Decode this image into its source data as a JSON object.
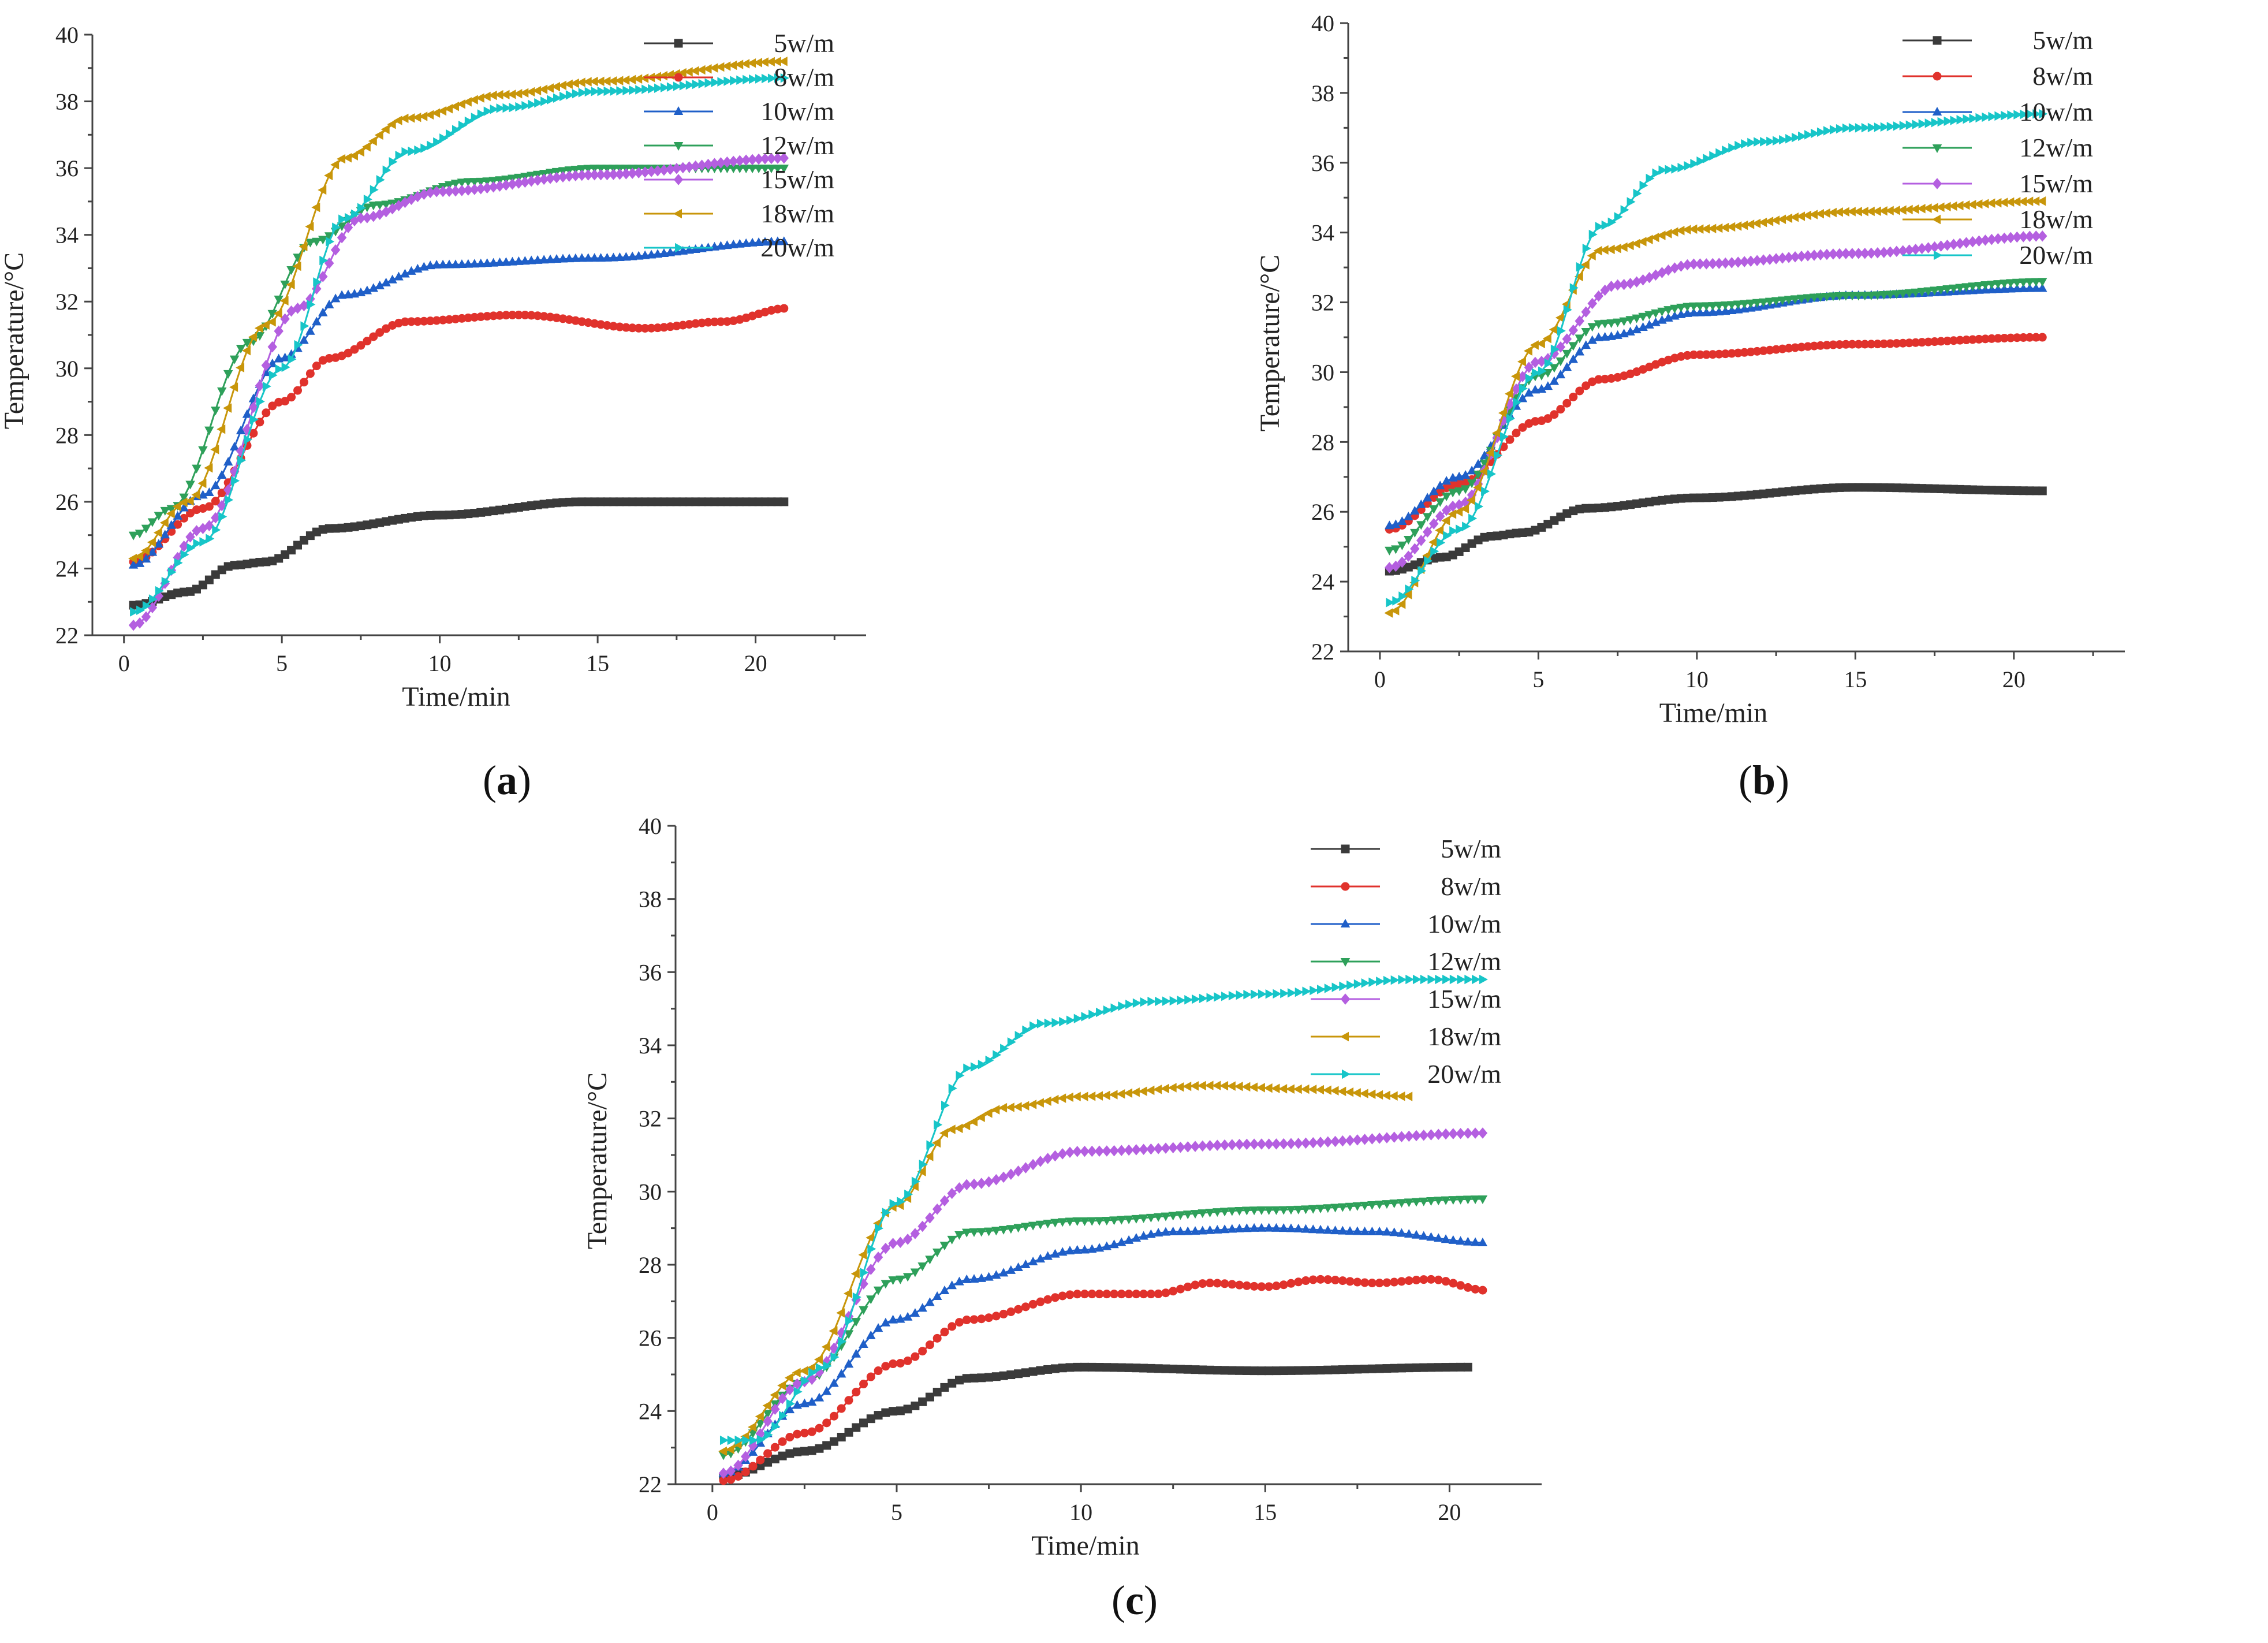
{
  "figure": {
    "legend_labels": [
      "5w/m",
      "8w/m",
      "10w/m",
      "12w/m",
      "15w/m",
      "18w/m",
      "20w/m"
    ],
    "series_colors": [
      "#3a3a3a",
      "#e0322c",
      "#1f5fc8",
      "#2ea05a",
      "#b45fe0",
      "#c8960a",
      "#17c5c8"
    ],
    "markers": [
      "square",
      "circle",
      "triangle-up",
      "triangle-down",
      "diamond",
      "triangle-left",
      "triangle-right"
    ]
  },
  "chart_data": [
    {
      "id": "a",
      "type": "line",
      "panel_label": "a",
      "xlabel": "Time/min",
      "ylabel": "Temperature/°C",
      "xlim": [
        -1,
        23.5
      ],
      "ylim": [
        22,
        40
      ],
      "xticks": [
        0,
        5,
        10,
        15,
        20
      ],
      "yticks": [
        22,
        24,
        26,
        28,
        30,
        32,
        34,
        36,
        38,
        40
      ],
      "x_range": [
        0.3,
        21
      ],
      "series": [
        {
          "name": "5w/m",
          "knots": [
            [
              0.3,
              22.9
            ],
            [
              2,
              23.3
            ],
            [
              3.5,
              24.1
            ],
            [
              4.5,
              24.2
            ],
            [
              6.5,
              25.2
            ],
            [
              10,
              25.6
            ],
            [
              14.5,
              26.0
            ],
            [
              21,
              26.0
            ]
          ]
        },
        {
          "name": "8w/m",
          "knots": [
            [
              0.3,
              24.2
            ],
            [
              2.5,
              25.8
            ],
            [
              5,
              29.0
            ],
            [
              6.5,
              30.3
            ],
            [
              9,
              31.4
            ],
            [
              12.5,
              31.6
            ],
            [
              16.5,
              31.2
            ],
            [
              19,
              31.4
            ],
            [
              21,
              31.8
            ]
          ]
        },
        {
          "name": "10w/m",
          "knots": [
            [
              0.3,
              24.1
            ],
            [
              2.5,
              26.2
            ],
            [
              5,
              30.3
            ],
            [
              7,
              32.2
            ],
            [
              10,
              33.1
            ],
            [
              15,
              33.3
            ],
            [
              21,
              33.8
            ]
          ]
        },
        {
          "name": "12w/m",
          "knots": [
            [
              0.3,
              25.0
            ],
            [
              1.5,
              25.8
            ],
            [
              4,
              30.8
            ],
            [
              6,
              33.8
            ],
            [
              8,
              34.9
            ],
            [
              11,
              35.6
            ],
            [
              15,
              36.0
            ],
            [
              21,
              36.0
            ]
          ]
        },
        {
          "name": "15w/m",
          "knots": [
            [
              0.3,
              22.3
            ],
            [
              2.5,
              25.2
            ],
            [
              5.5,
              31.8
            ],
            [
              7.5,
              34.5
            ],
            [
              10,
              35.3
            ],
            [
              15,
              35.8
            ],
            [
              21,
              36.3
            ]
          ]
        },
        {
          "name": "18w/m",
          "knots": [
            [
              0.3,
              24.3
            ],
            [
              2,
              26.0
            ],
            [
              4.5,
              31.3
            ],
            [
              7,
              36.3
            ],
            [
              9,
              37.5
            ],
            [
              12,
              38.2
            ],
            [
              15,
              38.6
            ],
            [
              21,
              39.2
            ]
          ]
        },
        {
          "name": "20w/m",
          "knots": [
            [
              0.3,
              22.7
            ],
            [
              2.5,
              24.8
            ],
            [
              5,
              30.0
            ],
            [
              7,
              34.5
            ],
            [
              9,
              36.5
            ],
            [
              12,
              37.8
            ],
            [
              15,
              38.3
            ],
            [
              21,
              38.7
            ]
          ]
        }
      ]
    },
    {
      "id": "b",
      "type": "line",
      "panel_label": "b",
      "xlabel": "Time/min",
      "ylabel": "Temperature/°C",
      "xlim": [
        -1,
        23.5
      ],
      "ylim": [
        22,
        40
      ],
      "xticks": [
        0,
        5,
        10,
        15,
        20
      ],
      "yticks": [
        22,
        24,
        26,
        28,
        30,
        32,
        34,
        36,
        38,
        40
      ],
      "x_range": [
        0.3,
        21
      ],
      "series": [
        {
          "name": "5w/m",
          "knots": [
            [
              0.3,
              24.3
            ],
            [
              2,
              24.7
            ],
            [
              3.5,
              25.3
            ],
            [
              4.5,
              25.4
            ],
            [
              6.5,
              26.1
            ],
            [
              10,
              26.4
            ],
            [
              15,
              26.7
            ],
            [
              21,
              26.6
            ]
          ]
        },
        {
          "name": "8w/m",
          "knots": [
            [
              0.3,
              25.5
            ],
            [
              2.5,
              26.8
            ],
            [
              5,
              28.6
            ],
            [
              7,
              29.8
            ],
            [
              10,
              30.5
            ],
            [
              15,
              30.8
            ],
            [
              21,
              31.0
            ]
          ]
        },
        {
          "name": "10w/m",
          "knots": [
            [
              0.3,
              25.6
            ],
            [
              2.5,
              27.0
            ],
            [
              5,
              29.5
            ],
            [
              7,
              31.0
            ],
            [
              10,
              31.7
            ],
            [
              15,
              32.2
            ],
            [
              21,
              32.4
            ]
          ]
        },
        {
          "name": "12w/m",
          "knots": [
            [
              0.3,
              24.9
            ],
            [
              2.5,
              26.6
            ],
            [
              5,
              29.9
            ],
            [
              7,
              31.4
            ],
            [
              10,
              31.9
            ],
            [
              15,
              32.2
            ],
            [
              21,
              32.6
            ]
          ]
        },
        {
          "name": "15w/m",
          "knots": [
            [
              0.3,
              24.4
            ],
            [
              2.5,
              26.2
            ],
            [
              5,
              30.3
            ],
            [
              7.5,
              32.5
            ],
            [
              10,
              33.1
            ],
            [
              15,
              33.4
            ],
            [
              21,
              33.9
            ]
          ]
        },
        {
          "name": "18w/m",
          "knots": [
            [
              0.3,
              23.1
            ],
            [
              2.5,
              26.0
            ],
            [
              5,
              30.8
            ],
            [
              7,
              33.5
            ],
            [
              10,
              34.1
            ],
            [
              15,
              34.6
            ],
            [
              21,
              34.9
            ]
          ]
        },
        {
          "name": "20w/m",
          "knots": [
            [
              0.3,
              23.4
            ],
            [
              2.5,
              25.5
            ],
            [
              5,
              30.0
            ],
            [
              7,
              34.2
            ],
            [
              9,
              35.8
            ],
            [
              12,
              36.6
            ],
            [
              15,
              37.0
            ],
            [
              21,
              37.4
            ]
          ]
        }
      ]
    },
    {
      "id": "c",
      "type": "line",
      "panel_label": "c",
      "xlabel": "Time/min",
      "ylabel": "Temperature/°C",
      "xlim": [
        -1,
        22.5
      ],
      "ylim": [
        22,
        40
      ],
      "xticks": [
        0,
        5,
        10,
        15,
        20
      ],
      "yticks": [
        22,
        24,
        26,
        28,
        30,
        32,
        34,
        36,
        38,
        40
      ],
      "x_range": [
        0.3,
        21
      ],
      "series": [
        {
          "name": "5w/m",
          "knots": [
            [
              0.3,
              22.2
            ],
            [
              2.5,
              22.9
            ],
            [
              5,
              24.0
            ],
            [
              7,
              24.9
            ],
            [
              10,
              25.2
            ],
            [
              15,
              25.1
            ],
            [
              20.5,
              25.2
            ]
          ],
          "x_end": 20.5
        },
        {
          "name": "8w/m",
          "knots": [
            [
              0.3,
              22.1
            ],
            [
              2.5,
              23.4
            ],
            [
              5,
              25.3
            ],
            [
              7,
              26.5
            ],
            [
              10,
              27.2
            ],
            [
              12,
              27.2
            ],
            [
              13.5,
              27.5
            ],
            [
              15,
              27.4
            ],
            [
              16.5,
              27.6
            ],
            [
              18,
              27.5
            ],
            [
              19.5,
              27.6
            ],
            [
              21,
              27.3
            ]
          ]
        },
        {
          "name": "10w/m",
          "knots": [
            [
              0.3,
              22.3
            ],
            [
              2.5,
              24.2
            ],
            [
              5,
              26.5
            ],
            [
              7,
              27.6
            ],
            [
              10,
              28.4
            ],
            [
              12.5,
              28.9
            ],
            [
              15,
              29.0
            ],
            [
              18,
              28.9
            ],
            [
              21,
              28.6
            ]
          ]
        },
        {
          "name": "12w/m",
          "knots": [
            [
              0.3,
              22.8
            ],
            [
              2.5,
              24.8
            ],
            [
              5,
              27.6
            ],
            [
              7,
              28.9
            ],
            [
              10,
              29.2
            ],
            [
              15,
              29.5
            ],
            [
              21,
              29.8
            ]
          ]
        },
        {
          "name": "15w/m",
          "knots": [
            [
              0.3,
              22.3
            ],
            [
              2.5,
              24.8
            ],
            [
              5,
              28.6
            ],
            [
              7,
              30.2
            ],
            [
              10,
              31.1
            ],
            [
              15,
              31.3
            ],
            [
              21,
              31.6
            ]
          ]
        },
        {
          "name": "18w/m",
          "knots": [
            [
              0.3,
              22.9
            ],
            [
              2.5,
              25.1
            ],
            [
              5,
              29.6
            ],
            [
              6.5,
              31.7
            ],
            [
              8,
              32.3
            ],
            [
              10,
              32.6
            ],
            [
              13.5,
              32.9
            ],
            [
              16,
              32.8
            ],
            [
              19,
              32.6
            ]
          ],
          "x_end": 19
        },
        {
          "name": "20w/m",
          "knots": [
            [
              0.3,
              23.2
            ],
            [
              1.2,
              23.2
            ],
            [
              3,
              25.2
            ],
            [
              5,
              29.7
            ],
            [
              7,
              33.4
            ],
            [
              9,
              34.6
            ],
            [
              12,
              35.2
            ],
            [
              15,
              35.4
            ],
            [
              19,
              35.8
            ],
            [
              21,
              35.8
            ]
          ]
        }
      ]
    }
  ]
}
